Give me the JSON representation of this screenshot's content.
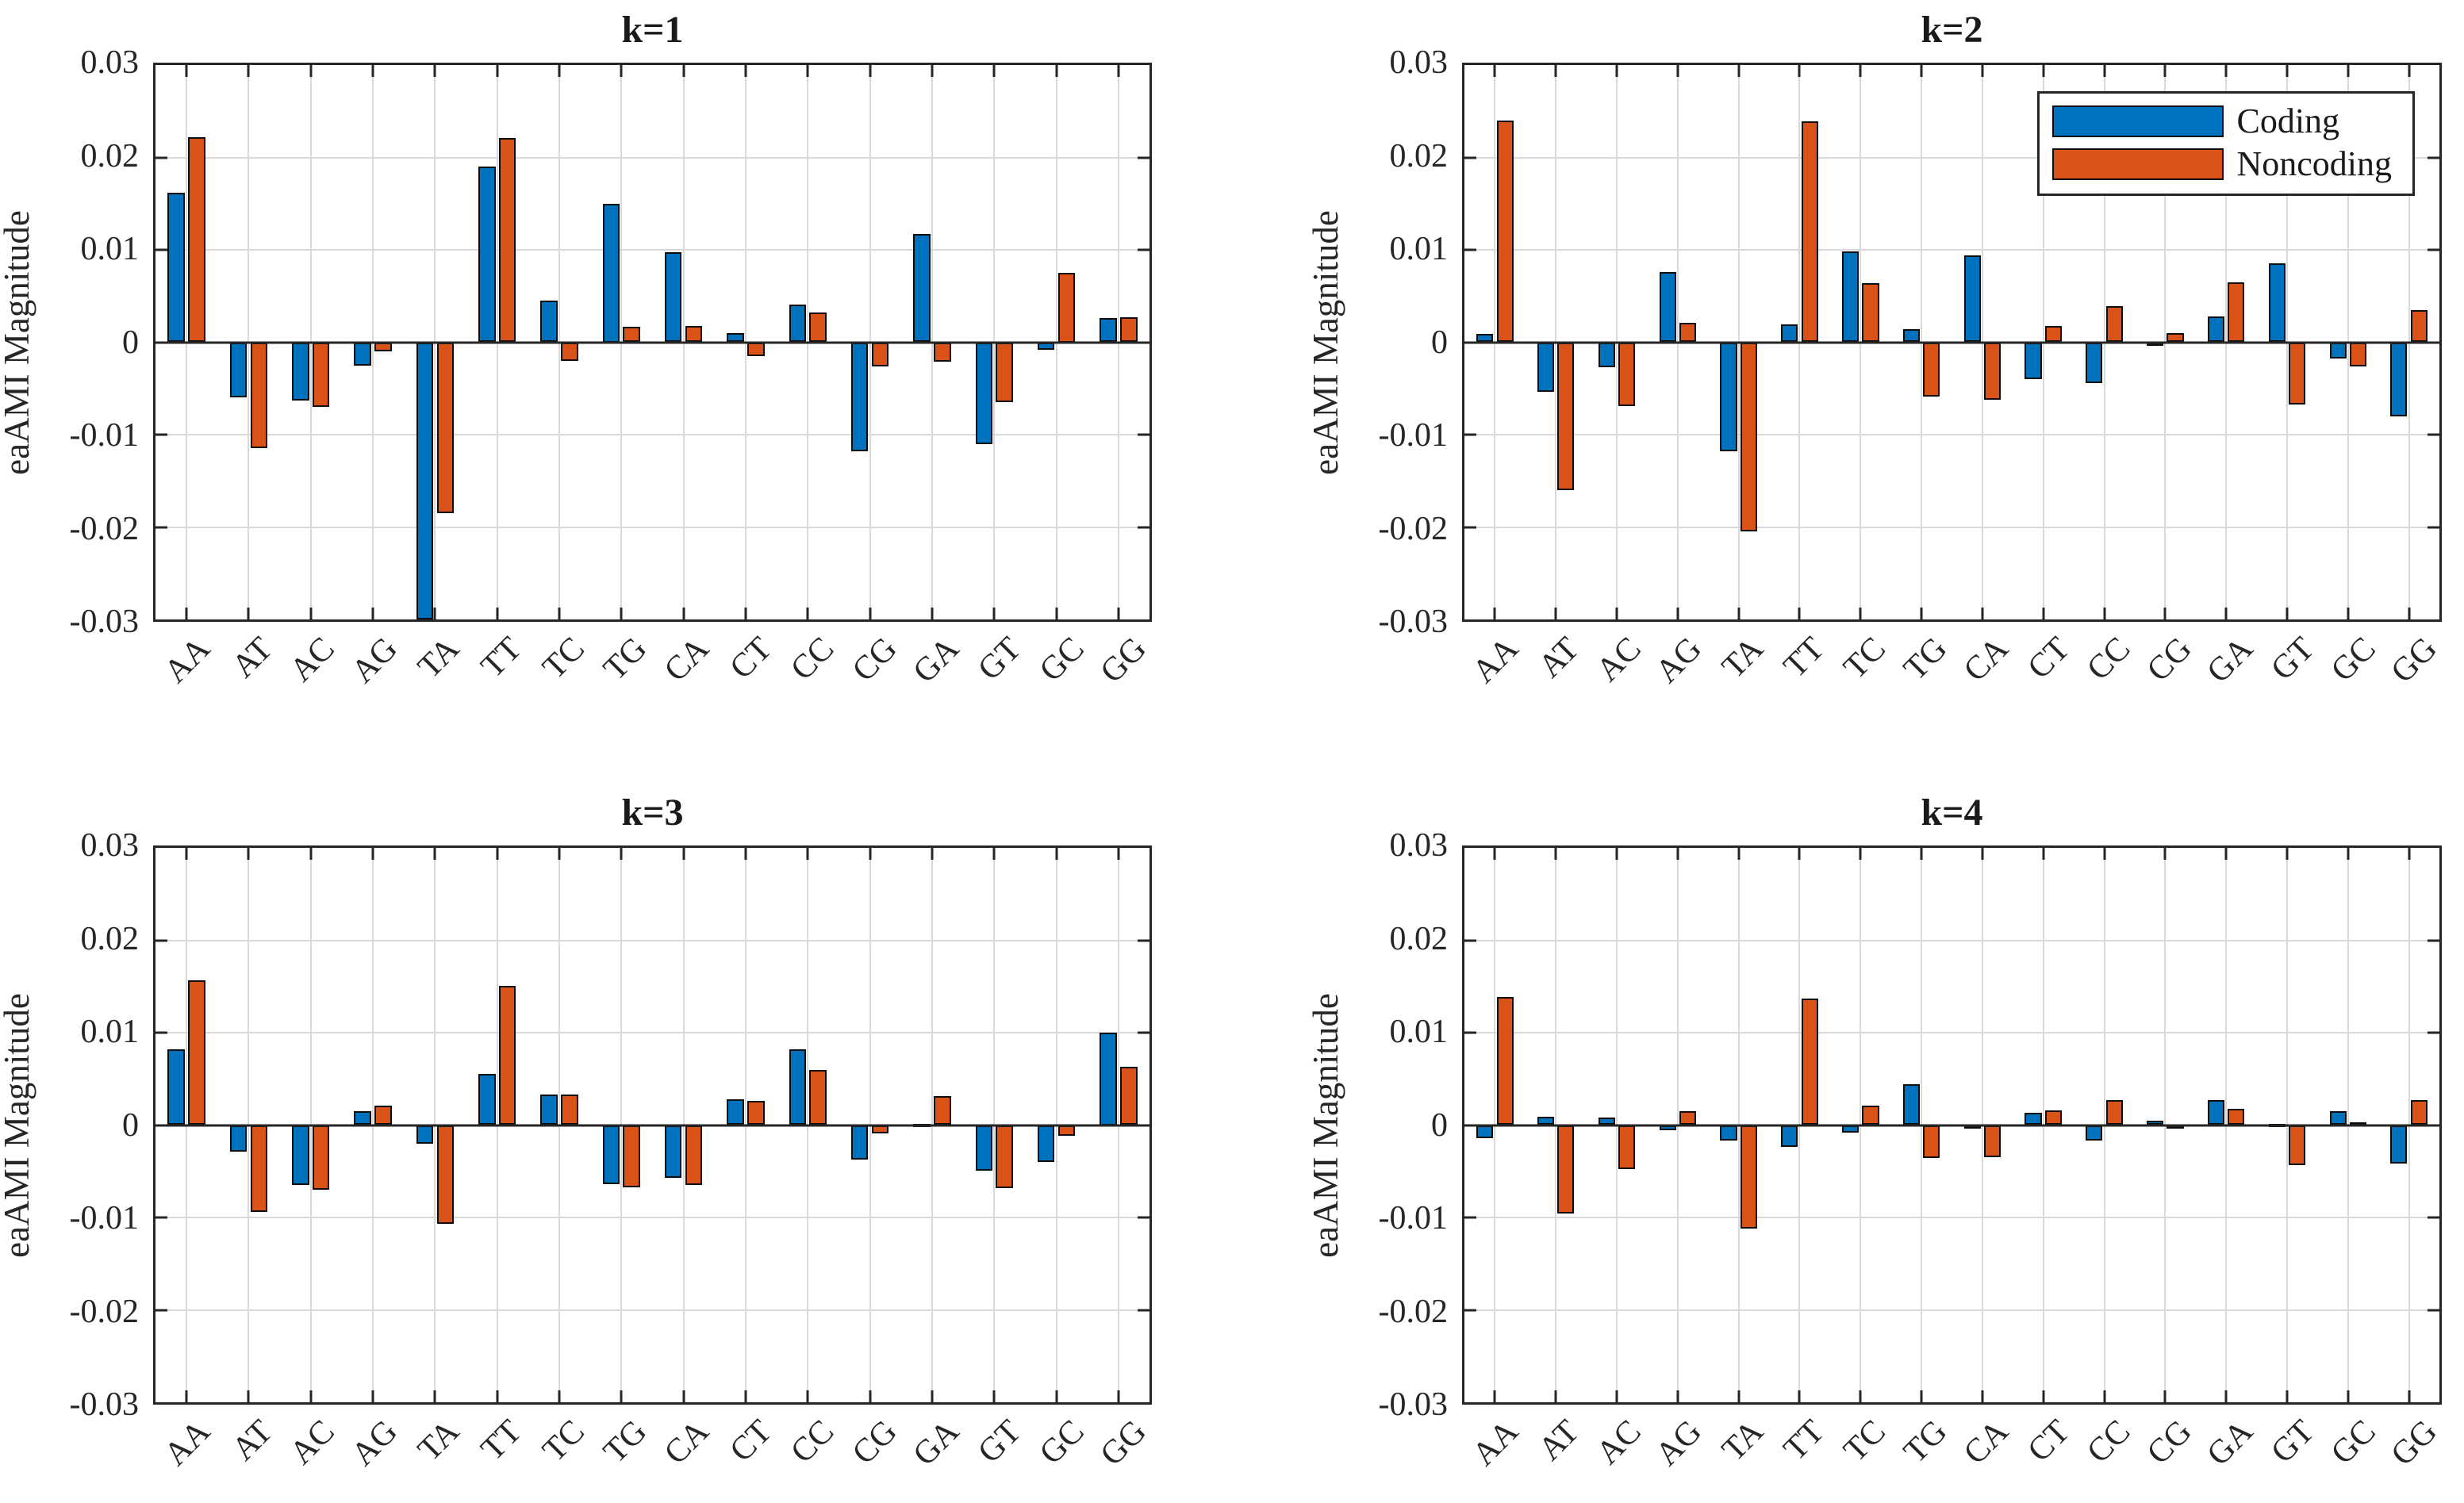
{
  "figure": {
    "ylabel": "eaAMI Magnitude",
    "ytick_labels": [
      "0.03",
      "0.02",
      "0.01",
      "0",
      "-0.01",
      "-0.02",
      "-0.03"
    ],
    "ytick_values": [
      0.03,
      0.02,
      0.01,
      0,
      -0.01,
      -0.02,
      -0.03
    ],
    "gridline_values": [
      0.02,
      0.01,
      -0.01,
      -0.02
    ],
    "inner_tick_values": [
      0.02,
      0.01,
      0,
      -0.01,
      -0.02
    ],
    "legend": {
      "position": "top-right-of-k2",
      "entries": [
        {
          "label": "Coding",
          "color": "#0072BD"
        },
        {
          "label": "Noncoding",
          "color": "#D95319"
        }
      ]
    },
    "colors": {
      "coding": "#0072BD",
      "noncoding": "#D95319",
      "grid": "#d9d9d9",
      "axis": "#262626",
      "background": "#ffffff"
    }
  },
  "chart_data": [
    {
      "type": "bar",
      "title": "k=1",
      "ylabel": "eaAMI Magnitude",
      "ylim": [
        -0.03,
        0.03
      ],
      "grid": true,
      "legend_visible": false,
      "categories": [
        "AA",
        "AT",
        "AC",
        "AG",
        "TA",
        "TT",
        "TC",
        "TG",
        "CA",
        "CT",
        "CC",
        "CG",
        "GA",
        "GT",
        "GC",
        "GG"
      ],
      "series": [
        {
          "name": "Coding",
          "color": "#0072BD",
          "values": [
            0.0162,
            -0.006,
            -0.0063,
            -0.0025,
            -0.03,
            0.019,
            0.0045,
            0.015,
            0.0097,
            0.001,
            0.0041,
            -0.0118,
            0.0117,
            -0.011,
            -0.0008,
            0.0026
          ]
        },
        {
          "name": "Noncoding",
          "color": "#D95319",
          "values": [
            0.0222,
            -0.0115,
            -0.007,
            -0.001,
            -0.0185,
            0.0221,
            -0.002,
            0.0017,
            0.0018,
            -0.0015,
            0.0032,
            -0.0026,
            -0.0021,
            -0.0065,
            0.0075,
            0.0027
          ]
        }
      ]
    },
    {
      "type": "bar",
      "title": "k=2",
      "ylabel": "eaAMI Magnitude",
      "ylim": [
        -0.03,
        0.03
      ],
      "grid": true,
      "legend_visible": true,
      "categories": [
        "AA",
        "AT",
        "AC",
        "AG",
        "TA",
        "TT",
        "TC",
        "TG",
        "CA",
        "CT",
        "CC",
        "CG",
        "GA",
        "GT",
        "GC",
        "GG"
      ],
      "series": [
        {
          "name": "Coding",
          "color": "#0072BD",
          "values": [
            0.0009,
            -0.0054,
            -0.0027,
            0.0076,
            -0.0118,
            0.0019,
            0.0098,
            0.0014,
            0.0094,
            -0.004,
            -0.0044,
            -0.0002,
            0.0028,
            0.0085,
            -0.0018,
            -0.008
          ]
        },
        {
          "name": "Noncoding",
          "color": "#D95319",
          "values": [
            0.024,
            -0.016,
            -0.0069,
            0.0021,
            -0.0205,
            0.0239,
            0.0064,
            -0.0059,
            -0.0062,
            0.0018,
            0.0039,
            0.001,
            0.0065,
            -0.0067,
            -0.0026,
            0.0035
          ]
        }
      ]
    },
    {
      "type": "bar",
      "title": "k=3",
      "ylabel": "eaAMI Magnitude",
      "ylim": [
        -0.03,
        0.03
      ],
      "grid": true,
      "legend_visible": false,
      "categories": [
        "AA",
        "AT",
        "AC",
        "AG",
        "TA",
        "TT",
        "TC",
        "TG",
        "CA",
        "CT",
        "CC",
        "CG",
        "GA",
        "GT",
        "GC",
        "GG"
      ],
      "series": [
        {
          "name": "Coding",
          "color": "#0072BD",
          "values": [
            0.0082,
            -0.0029,
            -0.0065,
            0.0015,
            -0.002,
            0.0055,
            0.0033,
            -0.0064,
            -0.0057,
            0.0028,
            0.0082,
            -0.0037,
            0.0001,
            -0.0049,
            -0.004,
            0.01
          ]
        },
        {
          "name": "Noncoding",
          "color": "#D95319",
          "values": [
            0.0157,
            -0.0094,
            -0.007,
            0.0021,
            -0.0107,
            0.0151,
            0.0033,
            -0.0067,
            -0.0065,
            0.0026,
            0.006,
            -0.0009,
            0.0031,
            -0.0068,
            -0.0012,
            0.0063
          ]
        }
      ]
    },
    {
      "type": "bar",
      "title": "k=4",
      "ylabel": "eaAMI Magnitude",
      "ylim": [
        -0.03,
        0.03
      ],
      "grid": true,
      "legend_visible": false,
      "categories": [
        "AA",
        "AT",
        "AC",
        "AG",
        "TA",
        "TT",
        "TC",
        "TG",
        "CA",
        "CT",
        "CC",
        "CG",
        "GA",
        "GT",
        "GC",
        "GG"
      ],
      "series": [
        {
          "name": "Coding",
          "color": "#0072BD",
          "values": [
            -0.0014,
            0.0009,
            0.0008,
            -0.0006,
            -0.0017,
            -0.0024,
            -0.0008,
            0.0044,
            -0.0001,
            0.0013,
            -0.0017,
            0.0005,
            0.0027,
            0.0001,
            0.0015,
            -0.0042
          ]
        },
        {
          "name": "Noncoding",
          "color": "#D95319",
          "values": [
            0.0139,
            -0.0096,
            -0.0048,
            0.0015,
            -0.0112,
            0.0137,
            0.0021,
            -0.0036,
            -0.0035,
            0.0016,
            0.0027,
            -0.0004,
            0.0018,
            -0.0043,
            0.0003,
            0.0027
          ]
        }
      ]
    }
  ]
}
